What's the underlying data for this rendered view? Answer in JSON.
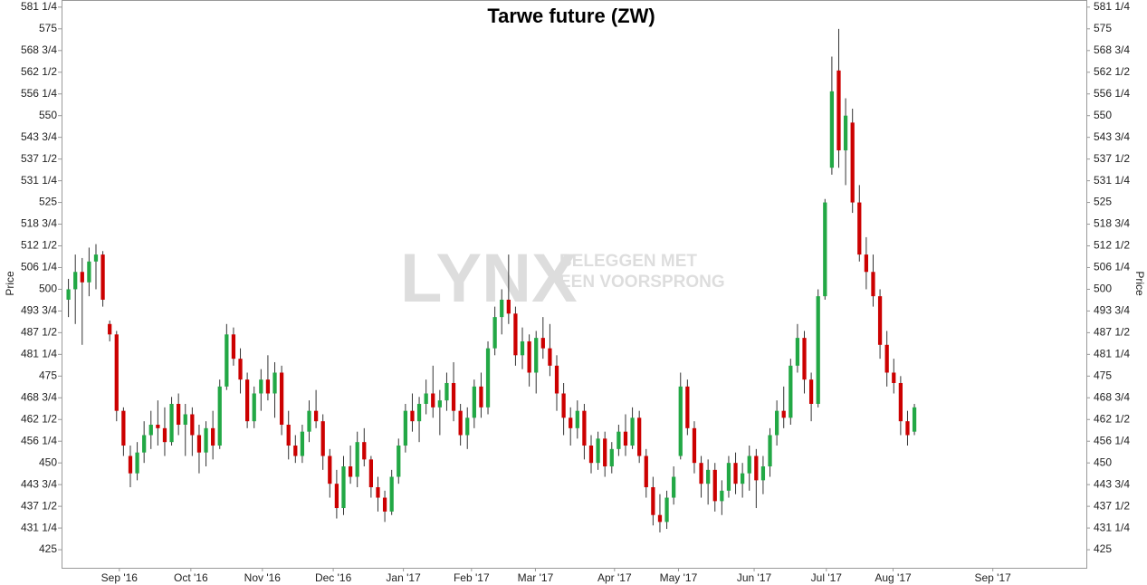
{
  "chart_data": {
    "type": "candlestick",
    "title": "Tarwe future (ZW)",
    "y_label": "Price",
    "watermark": {
      "logo": "LYNX",
      "tagline": [
        "BELEGGEN MET",
        "EEN VOORSPRONG"
      ]
    },
    "up_color": "#22a845",
    "down_color": "#cc0000",
    "ylim": [
      419.8,
      583.3
    ],
    "xlim": [
      -1,
      148
    ],
    "yticks": [
      425,
      {
        "value": 431.25,
        "label": "431 1/4"
      },
      {
        "value": 437.5,
        "label": "437 1/2"
      },
      {
        "value": 443.75,
        "label": "443 3/4"
      },
      450,
      {
        "value": 456.25,
        "label": "456 1/4"
      },
      {
        "value": 462.5,
        "label": "462 1/2"
      },
      {
        "value": 468.75,
        "label": "468 3/4"
      },
      475,
      {
        "value": 481.25,
        "label": "481 1/4"
      },
      {
        "value": 487.5,
        "label": "487 1/2"
      },
      {
        "value": 493.75,
        "label": "493 3/4"
      },
      500,
      {
        "value": 506.25,
        "label": "506 1/4"
      },
      {
        "value": 512.5,
        "label": "512 1/2"
      },
      {
        "value": 518.75,
        "label": "518 3/4"
      },
      525,
      {
        "value": 531.25,
        "label": "531 1/4"
      },
      {
        "value": 537.5,
        "label": "537 1/2"
      },
      {
        "value": 543.75,
        "label": "543 3/4"
      },
      550,
      {
        "value": 556.25,
        "label": "556 1/4"
      },
      {
        "value": 562.5,
        "label": "562 1/2"
      },
      {
        "value": 568.75,
        "label": "568 3/4"
      },
      575,
      {
        "value": 581.25,
        "label": "581 1/4"
      }
    ],
    "xticks": [
      {
        "value": 7.4,
        "label": "Sep '16"
      },
      {
        "value": 17.8,
        "label": "Oct '16"
      },
      {
        "value": 28.2,
        "label": "Nov '16"
      },
      {
        "value": 38.5,
        "label": "Dec '16"
      },
      {
        "value": 48.7,
        "label": "Jan '17"
      },
      {
        "value": 58.6,
        "label": "Feb '17"
      },
      {
        "value": 67.9,
        "label": "Mar '17"
      },
      {
        "value": 79.4,
        "label": "Apr '17"
      },
      {
        "value": 88.7,
        "label": "May '17"
      },
      {
        "value": 99.7,
        "label": "Jun '17"
      },
      {
        "value": 110.2,
        "label": "Jul '17"
      },
      {
        "value": 119.9,
        "label": "Aug '17"
      },
      {
        "value": 134.4,
        "label": "Sep '17"
      }
    ],
    "candles": [
      [
        497,
        503,
        492,
        500
      ],
      [
        500,
        510,
        490,
        505
      ],
      [
        505,
        509,
        484,
        502
      ],
      [
        502,
        512,
        498,
        508
      ],
      [
        508,
        513,
        500,
        510
      ],
      [
        510,
        511,
        495,
        497
      ],
      [
        490,
        491,
        485,
        487
      ],
      [
        487,
        488,
        462,
        465
      ],
      [
        465,
        466,
        452,
        455
      ],
      [
        452,
        455,
        443,
        447
      ],
      [
        447,
        456,
        445,
        453
      ],
      [
        453,
        462,
        450,
        458
      ],
      [
        458,
        465,
        454,
        461
      ],
      [
        461,
        468,
        455,
        460
      ],
      [
        460,
        466,
        452,
        456
      ],
      [
        456,
        469,
        455,
        467
      ],
      [
        467,
        470,
        458,
        461
      ],
      [
        461,
        467,
        452,
        464
      ],
      [
        464,
        466,
        452,
        458
      ],
      [
        458,
        461,
        447,
        453
      ],
      [
        453,
        462,
        449,
        460
      ],
      [
        460,
        465,
        451,
        455
      ],
      [
        455,
        474,
        454,
        472
      ],
      [
        472,
        490,
        471,
        487
      ],
      [
        487,
        489,
        478,
        480
      ],
      [
        480,
        483,
        470,
        474
      ],
      [
        474,
        476,
        460,
        462
      ],
      [
        462,
        472,
        460,
        470
      ],
      [
        470,
        477,
        465,
        474
      ],
      [
        474,
        481,
        468,
        470
      ],
      [
        470,
        479,
        463,
        476
      ],
      [
        476,
        478,
        458,
        461
      ],
      [
        461,
        465,
        451,
        455
      ],
      [
        455,
        458,
        450,
        452
      ],
      [
        452,
        461,
        450,
        459
      ],
      [
        459,
        468,
        456,
        465
      ],
      [
        465,
        471,
        460,
        462
      ],
      [
        462,
        464,
        448,
        452
      ],
      [
        452,
        454,
        440,
        444
      ],
      [
        444,
        448,
        434,
        437
      ],
      [
        437,
        452,
        435,
        449
      ],
      [
        449,
        455,
        444,
        446
      ],
      [
        446,
        459,
        443,
        456
      ],
      [
        456,
        460,
        449,
        451
      ],
      [
        451,
        452,
        440,
        443
      ],
      [
        443,
        446,
        436,
        440
      ],
      [
        440,
        442,
        433,
        436
      ],
      [
        436,
        448,
        435,
        446
      ],
      [
        446,
        457,
        444,
        455
      ],
      [
        455,
        467,
        453,
        465
      ],
      [
        465,
        470,
        459,
        462
      ],
      [
        462,
        469,
        456,
        467
      ],
      [
        467,
        474,
        464,
        470
      ],
      [
        470,
        478,
        463,
        466
      ],
      [
        466,
        471,
        458,
        468
      ],
      [
        468,
        476,
        465,
        473
      ],
      [
        473,
        479,
        462,
        465
      ],
      [
        465,
        467,
        455,
        458
      ],
      [
        458,
        466,
        454,
        463
      ],
      [
        463,
        474,
        460,
        472
      ],
      [
        472,
        476,
        463,
        466
      ],
      [
        466,
        485,
        464,
        483
      ],
      [
        483,
        495,
        481,
        492
      ],
      [
        492,
        500,
        487,
        497
      ],
      [
        497,
        510,
        490,
        493
      ],
      [
        493,
        495,
        478,
        481
      ],
      [
        481,
        489,
        477,
        485
      ],
      [
        485,
        487,
        472,
        476
      ],
      [
        476,
        488,
        470,
        486
      ],
      [
        486,
        492,
        480,
        483
      ],
      [
        483,
        490,
        475,
        478
      ],
      [
        478,
        481,
        465,
        470
      ],
      [
        470,
        473,
        458,
        463
      ],
      [
        463,
        466,
        455,
        460
      ],
      [
        460,
        468,
        457,
        465
      ],
      [
        465,
        467,
        451,
        455
      ],
      [
        455,
        458,
        447,
        450
      ],
      [
        450,
        459,
        448,
        457
      ],
      [
        457,
        459,
        446,
        449
      ],
      [
        449,
        456,
        447,
        454
      ],
      [
        454,
        461,
        452,
        459
      ],
      [
        459,
        464,
        452,
        455
      ],
      [
        455,
        466,
        454,
        463
      ],
      [
        463,
        465,
        450,
        452
      ],
      [
        452,
        454,
        440,
        443
      ],
      [
        443,
        446,
        432,
        435
      ],
      [
        435,
        441,
        430,
        433
      ],
      [
        433,
        442,
        431,
        440
      ],
      [
        440,
        449,
        438,
        446
      ],
      [
        452,
        476,
        451,
        472
      ],
      [
        472,
        474,
        458,
        460
      ],
      [
        460,
        462,
        447,
        450
      ],
      [
        450,
        452,
        440,
        444
      ],
      [
        444,
        451,
        438,
        448
      ],
      [
        448,
        450,
        436,
        439
      ],
      [
        439,
        445,
        435,
        442
      ],
      [
        442,
        452,
        440,
        450
      ],
      [
        450,
        453,
        441,
        444
      ],
      [
        444,
        450,
        440,
        447
      ],
      [
        447,
        455,
        442,
        452
      ],
      [
        452,
        454,
        437,
        445
      ],
      [
        445,
        452,
        441,
        449
      ],
      [
        449,
        460,
        446,
        458
      ],
      [
        458,
        468,
        455,
        465
      ],
      [
        465,
        472,
        460,
        463
      ],
      [
        463,
        480,
        461,
        478
      ],
      [
        478,
        490,
        476,
        486
      ],
      [
        486,
        488,
        470,
        474
      ],
      [
        474,
        476,
        462,
        467
      ],
      [
        467,
        500,
        466,
        498
      ],
      [
        498,
        526,
        497,
        525
      ],
      [
        535,
        567,
        533,
        557
      ],
      [
        563,
        575,
        535,
        540
      ],
      [
        540,
        555,
        530,
        550
      ],
      [
        548,
        552,
        522,
        525
      ],
      [
        525,
        530,
        508,
        510
      ],
      [
        510,
        515,
        500,
        505
      ],
      [
        505,
        510,
        495,
        498
      ],
      [
        498,
        500,
        480,
        484
      ],
      [
        484,
        488,
        472,
        476
      ],
      [
        476,
        480,
        470,
        473
      ],
      [
        473,
        475,
        458,
        462
      ],
      [
        462,
        465,
        455,
        458
      ],
      [
        459,
        467,
        458,
        466
      ]
    ]
  }
}
